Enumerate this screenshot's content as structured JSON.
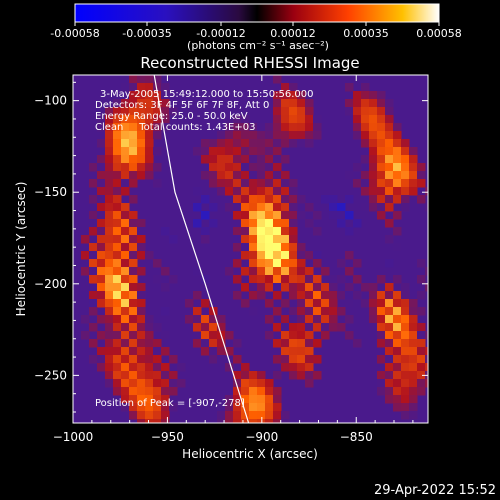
{
  "colorbar": {
    "ticks": [
      "-0.00058",
      "-0.00035",
      "-0.00012",
      "0.00012",
      "0.00035",
      "0.00058"
    ],
    "units": "(photons cm⁻² s⁻¹ asec⁻²)"
  },
  "plot": {
    "title": "Reconstructed RHESSI Image",
    "info": [
      "3-May-2005 15:49:12.000 to 15:50:56.000",
      "Detectors: 3F 4F 5F 6F 7F 8F, Att 0",
      "Energy Range: 25.0 - 50.0 keV",
      "Clean     Total counts: 1.43E+03"
    ],
    "peak": "Position of Peak = [-907,-278]",
    "footer_date": "29-Apr-2022 15:52"
  },
  "colors": {
    "background": "#4a1a8c",
    "hot_low": "#b0121e",
    "hot_mid": "#ff6000",
    "hot_high": "#ffff70",
    "cold": "#1a1ad8"
  },
  "chart_data": {
    "type": "heatmap",
    "title": "Reconstructed RHESSI Image",
    "xlabel": "Heliocentric X (arcsec)",
    "ylabel": "Heliocentric Y (arcsec)",
    "xlim": [
      -1000,
      -812
    ],
    "ylim": [
      -276,
      -86
    ],
    "xticks": [
      -1000,
      -950,
      -900,
      -850
    ],
    "yticks": [
      -100,
      -150,
      -200,
      -250
    ],
    "colorbar_range": [
      -0.00058,
      0.00058
    ],
    "peak_position": [
      -907,
      -278
    ],
    "limb": [
      [
        -957,
        -86
      ],
      [
        -946,
        -150
      ],
      [
        -930,
        -200
      ],
      [
        -907,
        -276
      ]
    ],
    "sources": [
      {
        "x": -973,
        "y": -128,
        "intensity": 0.75
      },
      {
        "x": -963,
        "y": -105,
        "intensity": 0.55
      },
      {
        "x": -976,
        "y": -203,
        "intensity": 0.8
      },
      {
        "x": -978,
        "y": -172,
        "intensity": 0.6
      },
      {
        "x": -972,
        "y": -240,
        "intensity": 0.55
      },
      {
        "x": -958,
        "y": -263,
        "intensity": 0.65
      },
      {
        "x": -895,
        "y": -185,
        "intensity": 0.95
      },
      {
        "x": -898,
        "y": -160,
        "intensity": 0.7
      },
      {
        "x": -918,
        "y": -130,
        "intensity": 0.55
      },
      {
        "x": -885,
        "y": -110,
        "intensity": 0.6
      },
      {
        "x": -905,
        "y": -268,
        "intensity": 0.85
      },
      {
        "x": -880,
        "y": -235,
        "intensity": 0.55
      },
      {
        "x": -830,
        "y": -140,
        "intensity": 0.85
      },
      {
        "x": -842,
        "y": -108,
        "intensity": 0.55
      },
      {
        "x": -830,
        "y": -218,
        "intensity": 0.7
      },
      {
        "x": -822,
        "y": -250,
        "intensity": 0.6
      },
      {
        "x": -868,
        "y": -205,
        "intensity": 0.45
      },
      {
        "x": -928,
        "y": -225,
        "intensity": 0.45
      }
    ],
    "cold_spots": [
      {
        "x": -935,
        "y": -165,
        "intensity": 0.35
      },
      {
        "x": -860,
        "y": -160,
        "intensity": 0.3
      },
      {
        "x": -850,
        "y": -100,
        "intensity": 0.3
      }
    ]
  }
}
